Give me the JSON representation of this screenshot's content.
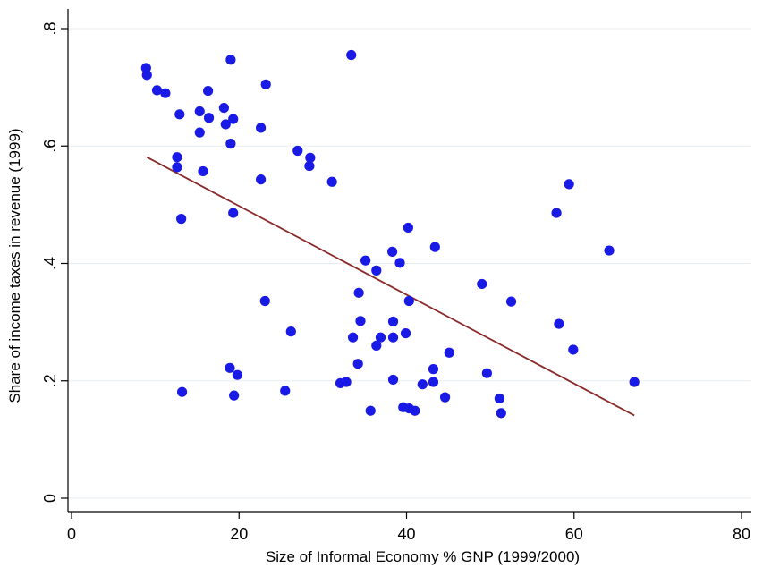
{
  "chart_data": {
    "type": "scatter",
    "xlabel": "Size of Informal Economy % GNP (1999/2000)",
    "ylabel": "Share of income taxes in revenue (1999)",
    "xlim": [
      0,
      80
    ],
    "ylim": [
      0,
      0.8
    ],
    "x_ticks": [
      0,
      20,
      40,
      60,
      80
    ],
    "x_tick_labels": [
      "0",
      "20",
      "40",
      "60",
      "80"
    ],
    "y_ticks": [
      0,
      0.2,
      0.4,
      0.6,
      0.8
    ],
    "y_tick_labels": [
      "0",
      ".2",
      ".4",
      ".6",
      ".8"
    ],
    "grid": true,
    "point_color": "#1a1ae6",
    "fit_color": "#8b2a2a",
    "points": [
      [
        8.9,
        0.733
      ],
      [
        9.0,
        0.721
      ],
      [
        10.2,
        0.695
      ],
      [
        11.2,
        0.69
      ],
      [
        12.9,
        0.654
      ],
      [
        12.6,
        0.581
      ],
      [
        12.6,
        0.564
      ],
      [
        13.1,
        0.476
      ],
      [
        13.2,
        0.181
      ],
      [
        15.3,
        0.659
      ],
      [
        15.3,
        0.623
      ],
      [
        15.7,
        0.557
      ],
      [
        16.3,
        0.694
      ],
      [
        16.4,
        0.648
      ],
      [
        18.2,
        0.665
      ],
      [
        18.4,
        0.637
      ],
      [
        19.0,
        0.747
      ],
      [
        19.0,
        0.604
      ],
      [
        19.3,
        0.646
      ],
      [
        19.3,
        0.486
      ],
      [
        19.4,
        0.175
      ],
      [
        18.9,
        0.222
      ],
      [
        19.8,
        0.21
      ],
      [
        22.6,
        0.631
      ],
      [
        22.6,
        0.543
      ],
      [
        23.2,
        0.705
      ],
      [
        23.1,
        0.336
      ],
      [
        25.5,
        0.183
      ],
      [
        26.2,
        0.284
      ],
      [
        27.0,
        0.592
      ],
      [
        28.5,
        0.58
      ],
      [
        28.4,
        0.566
      ],
      [
        31.1,
        0.539
      ],
      [
        32.1,
        0.196
      ],
      [
        32.8,
        0.198
      ],
      [
        33.4,
        0.755
      ],
      [
        33.6,
        0.274
      ],
      [
        34.2,
        0.229
      ],
      [
        34.3,
        0.35
      ],
      [
        34.5,
        0.302
      ],
      [
        35.1,
        0.405
      ],
      [
        35.7,
        0.149
      ],
      [
        36.4,
        0.26
      ],
      [
        36.4,
        0.388
      ],
      [
        36.9,
        0.274
      ],
      [
        38.3,
        0.42
      ],
      [
        38.4,
        0.301
      ],
      [
        38.4,
        0.274
      ],
      [
        38.4,
        0.202
      ],
      [
        39.2,
        0.401
      ],
      [
        39.6,
        0.155
      ],
      [
        39.9,
        0.281
      ],
      [
        40.2,
        0.461
      ],
      [
        40.3,
        0.336
      ],
      [
        40.3,
        0.153
      ],
      [
        41.0,
        0.149
      ],
      [
        41.9,
        0.194
      ],
      [
        43.2,
        0.22
      ],
      [
        43.2,
        0.198
      ],
      [
        43.4,
        0.428
      ],
      [
        44.6,
        0.172
      ],
      [
        45.1,
        0.248
      ],
      [
        49.0,
        0.365
      ],
      [
        49.6,
        0.213
      ],
      [
        51.1,
        0.17
      ],
      [
        51.3,
        0.145
      ],
      [
        52.5,
        0.335
      ],
      [
        57.9,
        0.486
      ],
      [
        58.2,
        0.297
      ],
      [
        59.4,
        0.535
      ],
      [
        59.9,
        0.253
      ],
      [
        64.2,
        0.422
      ],
      [
        67.2,
        0.198
      ]
    ],
    "fit_line": {
      "x": [
        9.0,
        67.2
      ],
      "y": [
        0.581,
        0.141
      ]
    }
  }
}
